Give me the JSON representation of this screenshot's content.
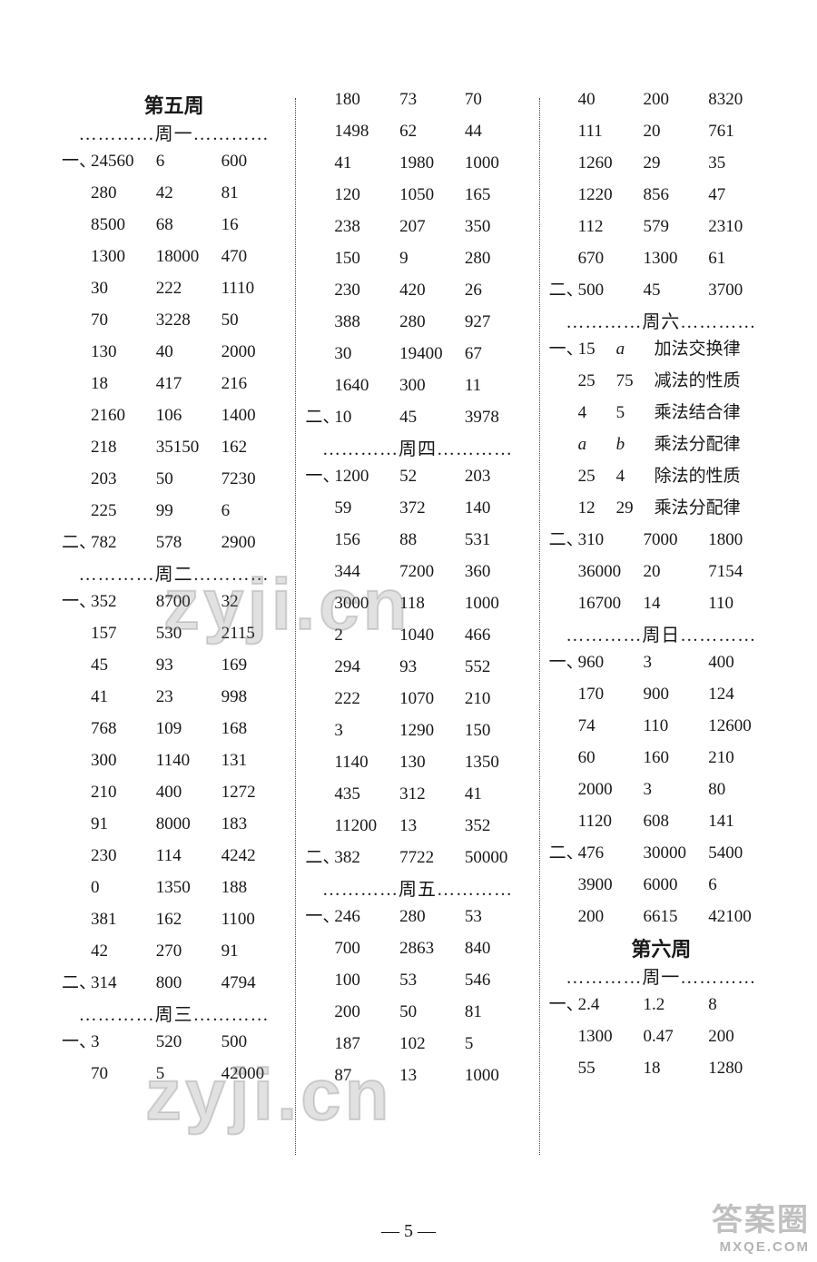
{
  "page_number": "— 5 —",
  "watermarks": {
    "top": "zyji.cn",
    "bottom": "zyji.cn",
    "corner_line1": "答案圈",
    "corner_line2": "MXQE.COM"
  },
  "columns": [
    {
      "blocks": [
        {
          "type": "title",
          "text": "第五周"
        },
        {
          "type": "day",
          "text": "…………周一…………"
        },
        {
          "type": "row",
          "bullet": "一、",
          "cells": [
            "24560",
            "6",
            "600"
          ]
        },
        {
          "type": "row",
          "bullet": "",
          "cells": [
            "280",
            "42",
            "81"
          ]
        },
        {
          "type": "row",
          "bullet": "",
          "cells": [
            "8500",
            "68",
            "16"
          ]
        },
        {
          "type": "row",
          "bullet": "",
          "cells": [
            "1300",
            "18000",
            "470"
          ]
        },
        {
          "type": "row",
          "bullet": "",
          "cells": [
            "30",
            "222",
            "1110"
          ]
        },
        {
          "type": "row",
          "bullet": "",
          "cells": [
            "70",
            "3228",
            "50"
          ]
        },
        {
          "type": "row",
          "bullet": "",
          "cells": [
            "130",
            "40",
            "2000"
          ]
        },
        {
          "type": "row",
          "bullet": "",
          "cells": [
            "18",
            "417",
            "216"
          ]
        },
        {
          "type": "row",
          "bullet": "",
          "cells": [
            "2160",
            "106",
            "1400"
          ]
        },
        {
          "type": "row",
          "bullet": "",
          "cells": [
            "218",
            "35150",
            "162"
          ]
        },
        {
          "type": "row",
          "bullet": "",
          "cells": [
            "203",
            "50",
            "7230"
          ]
        },
        {
          "type": "row",
          "bullet": "",
          "cells": [
            "225",
            "99",
            "6"
          ]
        },
        {
          "type": "row",
          "bullet": "二、",
          "cells": [
            "782",
            "578",
            "2900"
          ]
        },
        {
          "type": "day",
          "text": "…………周二…………"
        },
        {
          "type": "row",
          "bullet": "一、",
          "cells": [
            "352",
            "8700",
            "32"
          ]
        },
        {
          "type": "row",
          "bullet": "",
          "cells": [
            "157",
            "530",
            "2115"
          ]
        },
        {
          "type": "row",
          "bullet": "",
          "cells": [
            "45",
            "93",
            "169"
          ]
        },
        {
          "type": "row",
          "bullet": "",
          "cells": [
            "41",
            "23",
            "998"
          ]
        },
        {
          "type": "row",
          "bullet": "",
          "cells": [
            "768",
            "109",
            "168"
          ]
        },
        {
          "type": "row",
          "bullet": "",
          "cells": [
            "300",
            "1140",
            "131"
          ]
        },
        {
          "type": "row",
          "bullet": "",
          "cells": [
            "210",
            "400",
            "1272"
          ]
        },
        {
          "type": "row",
          "bullet": "",
          "cells": [
            "91",
            "8000",
            "183"
          ]
        },
        {
          "type": "row",
          "bullet": "",
          "cells": [
            "230",
            "114",
            "4242"
          ]
        },
        {
          "type": "row",
          "bullet": "",
          "cells": [
            "0",
            "1350",
            "188"
          ]
        },
        {
          "type": "row",
          "bullet": "",
          "cells": [
            "381",
            "162",
            "1100"
          ]
        },
        {
          "type": "row",
          "bullet": "",
          "cells": [
            "42",
            "270",
            "91"
          ]
        },
        {
          "type": "row",
          "bullet": "二、",
          "cells": [
            "314",
            "800",
            "4794"
          ]
        },
        {
          "type": "day",
          "text": "…………周三…………"
        },
        {
          "type": "row",
          "bullet": "一、",
          "cells": [
            "3",
            "520",
            "500"
          ]
        },
        {
          "type": "row",
          "bullet": "",
          "cells": [
            "70",
            "5",
            "42000"
          ]
        }
      ]
    },
    {
      "blocks": [
        {
          "type": "row",
          "bullet": "",
          "cells": [
            "180",
            "73",
            "70"
          ]
        },
        {
          "type": "row",
          "bullet": "",
          "cells": [
            "1498",
            "62",
            "44"
          ]
        },
        {
          "type": "row",
          "bullet": "",
          "cells": [
            "41",
            "1980",
            "1000"
          ]
        },
        {
          "type": "row",
          "bullet": "",
          "cells": [
            "120",
            "1050",
            "165"
          ]
        },
        {
          "type": "row",
          "bullet": "",
          "cells": [
            "238",
            "207",
            "350"
          ]
        },
        {
          "type": "row",
          "bullet": "",
          "cells": [
            "150",
            "9",
            "280"
          ]
        },
        {
          "type": "row",
          "bullet": "",
          "cells": [
            "230",
            "420",
            "26"
          ]
        },
        {
          "type": "row",
          "bullet": "",
          "cells": [
            "388",
            "280",
            "927"
          ]
        },
        {
          "type": "row",
          "bullet": "",
          "cells": [
            "30",
            "19400",
            "67"
          ]
        },
        {
          "type": "row",
          "bullet": "",
          "cells": [
            "1640",
            "300",
            "11"
          ]
        },
        {
          "type": "row",
          "bullet": "二、",
          "cells": [
            "10",
            "45",
            "3978"
          ]
        },
        {
          "type": "day",
          "text": "…………周四…………"
        },
        {
          "type": "row",
          "bullet": "一、",
          "cells": [
            "1200",
            "52",
            "203"
          ]
        },
        {
          "type": "row",
          "bullet": "",
          "cells": [
            "59",
            "372",
            "140"
          ]
        },
        {
          "type": "row",
          "bullet": "",
          "cells": [
            "156",
            "88",
            "531"
          ]
        },
        {
          "type": "row",
          "bullet": "",
          "cells": [
            "344",
            "7200",
            "360"
          ]
        },
        {
          "type": "row",
          "bullet": "",
          "cells": [
            "3000",
            "118",
            "1000"
          ]
        },
        {
          "type": "row",
          "bullet": "",
          "cells": [
            "2",
            "1040",
            "466"
          ]
        },
        {
          "type": "row",
          "bullet": "",
          "cells": [
            "294",
            "93",
            "552"
          ]
        },
        {
          "type": "row",
          "bullet": "",
          "cells": [
            "222",
            "1070",
            "210"
          ]
        },
        {
          "type": "row",
          "bullet": "",
          "cells": [
            "3",
            "1290",
            "150"
          ]
        },
        {
          "type": "row",
          "bullet": "",
          "cells": [
            "1140",
            "130",
            "1350"
          ]
        },
        {
          "type": "row",
          "bullet": "",
          "cells": [
            "435",
            "312",
            "41"
          ]
        },
        {
          "type": "row",
          "bullet": "",
          "cells": [
            "11200",
            "13",
            "352"
          ]
        },
        {
          "type": "row",
          "bullet": "二、",
          "cells": [
            "382",
            "7722",
            "50000"
          ]
        },
        {
          "type": "day",
          "text": "…………周五…………"
        },
        {
          "type": "row",
          "bullet": "一、",
          "cells": [
            "246",
            "280",
            "53"
          ]
        },
        {
          "type": "row",
          "bullet": "",
          "cells": [
            "700",
            "2863",
            "840"
          ]
        },
        {
          "type": "row",
          "bullet": "",
          "cells": [
            "100",
            "53",
            "546"
          ]
        },
        {
          "type": "row",
          "bullet": "",
          "cells": [
            "200",
            "50",
            "81"
          ]
        },
        {
          "type": "row",
          "bullet": "",
          "cells": [
            "187",
            "102",
            "5"
          ]
        },
        {
          "type": "row",
          "bullet": "",
          "cells": [
            "87",
            "13",
            "1000"
          ]
        }
      ]
    },
    {
      "blocks": [
        {
          "type": "row",
          "bullet": "",
          "cells": [
            "40",
            "200",
            "8320"
          ]
        },
        {
          "type": "row",
          "bullet": "",
          "cells": [
            "111",
            "20",
            "761"
          ]
        },
        {
          "type": "row",
          "bullet": "",
          "cells": [
            "1260",
            "29",
            "35"
          ]
        },
        {
          "type": "row",
          "bullet": "",
          "cells": [
            "1220",
            "856",
            "47"
          ]
        },
        {
          "type": "row",
          "bullet": "",
          "cells": [
            "112",
            "579",
            "2310"
          ]
        },
        {
          "type": "row",
          "bullet": "",
          "cells": [
            "670",
            "1300",
            "61"
          ]
        },
        {
          "type": "row",
          "bullet": "二、",
          "cells": [
            "500",
            "45",
            "3700"
          ]
        },
        {
          "type": "day",
          "text": "…………周六…………"
        },
        {
          "type": "textrow",
          "bullet": "一、",
          "nums": [
            "15",
            "a"
          ],
          "text": "加法交换律",
          "ital": [
            false,
            true
          ]
        },
        {
          "type": "textrow",
          "bullet": "",
          "nums": [
            "25",
            "75"
          ],
          "text": "减法的性质"
        },
        {
          "type": "textrow",
          "bullet": "",
          "nums": [
            "4",
            "5"
          ],
          "text": "乘法结合律"
        },
        {
          "type": "textrow",
          "bullet": "",
          "nums": [
            "a",
            "b"
          ],
          "text": "乘法分配律",
          "ital": [
            true,
            true
          ]
        },
        {
          "type": "textrow",
          "bullet": "",
          "nums": [
            "25",
            "4"
          ],
          "text": "除法的性质"
        },
        {
          "type": "textrow",
          "bullet": "",
          "nums": [
            "12",
            "29"
          ],
          "text": "乘法分配律"
        },
        {
          "type": "row",
          "bullet": "二、",
          "cells": [
            "310",
            "7000",
            "1800"
          ]
        },
        {
          "type": "row",
          "bullet": "",
          "cells": [
            "36000",
            "20",
            "7154"
          ]
        },
        {
          "type": "row",
          "bullet": "",
          "cells": [
            "16700",
            "14",
            "110"
          ]
        },
        {
          "type": "day",
          "text": "…………周日…………"
        },
        {
          "type": "row",
          "bullet": "一、",
          "cells": [
            "960",
            "3",
            "400"
          ]
        },
        {
          "type": "row",
          "bullet": "",
          "cells": [
            "170",
            "900",
            "124"
          ]
        },
        {
          "type": "row",
          "bullet": "",
          "cells": [
            "74",
            "110",
            "12600"
          ]
        },
        {
          "type": "row",
          "bullet": "",
          "cells": [
            "60",
            "160",
            "210"
          ]
        },
        {
          "type": "row",
          "bullet": "",
          "cells": [
            "2000",
            "3",
            "80"
          ]
        },
        {
          "type": "row",
          "bullet": "",
          "cells": [
            "1120",
            "608",
            "141"
          ]
        },
        {
          "type": "row",
          "bullet": "二、",
          "cells": [
            "476",
            "30000",
            "5400"
          ]
        },
        {
          "type": "row",
          "bullet": "",
          "cells": [
            "3900",
            "6000",
            "6"
          ]
        },
        {
          "type": "row",
          "bullet": "",
          "cells": [
            "200",
            "6615",
            "42100"
          ]
        },
        {
          "type": "title",
          "text": "第六周"
        },
        {
          "type": "day",
          "text": "…………周一…………"
        },
        {
          "type": "row",
          "bullet": "一、",
          "cells": [
            "2.4",
            "1.2",
            "8"
          ]
        },
        {
          "type": "row",
          "bullet": "",
          "cells": [
            "1300",
            "0.47",
            "200"
          ]
        },
        {
          "type": "row",
          "bullet": "",
          "cells": [
            "55",
            "18",
            "1280"
          ]
        }
      ]
    }
  ]
}
